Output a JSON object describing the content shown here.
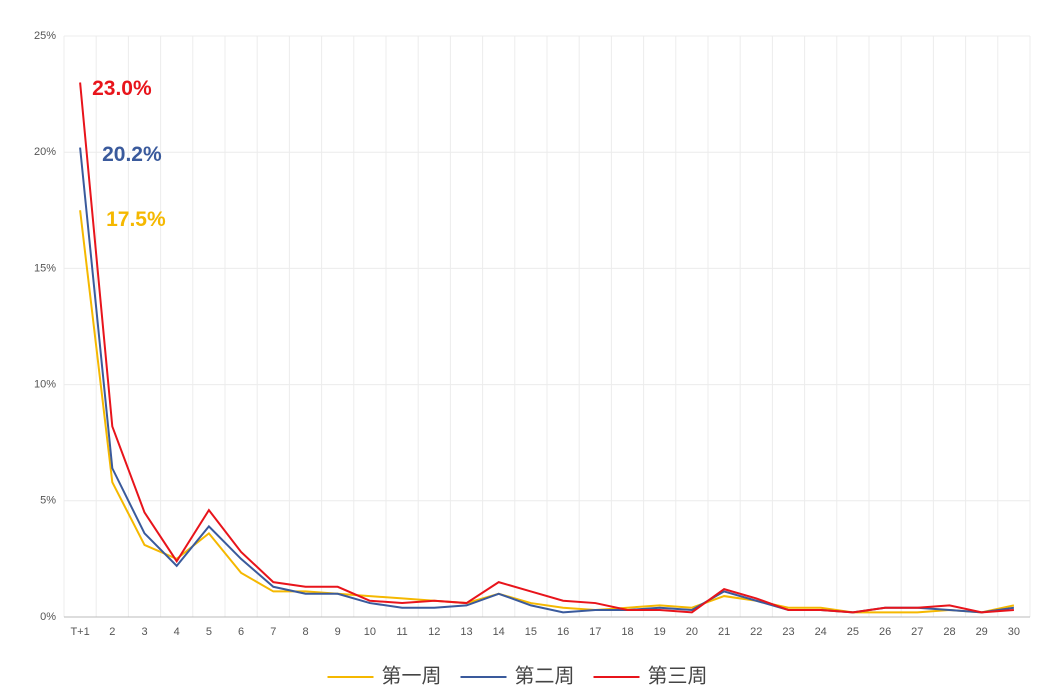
{
  "chart_data": {
    "type": "line",
    "categories": [
      "T+1",
      "2",
      "3",
      "4",
      "5",
      "6",
      "7",
      "8",
      "9",
      "10",
      "11",
      "12",
      "13",
      "14",
      "15",
      "16",
      "17",
      "18",
      "19",
      "20",
      "21",
      "22",
      "23",
      "24",
      "25",
      "26",
      "27",
      "28",
      "29",
      "30"
    ],
    "series": [
      {
        "name": "第一周",
        "color": "#f5b800",
        "values": [
          17.5,
          5.8,
          3.1,
          2.5,
          3.6,
          1.9,
          1.1,
          1.1,
          1.0,
          0.9,
          0.8,
          0.7,
          0.6,
          1.0,
          0.6,
          0.4,
          0.3,
          0.4,
          0.5,
          0.4,
          0.9,
          0.7,
          0.4,
          0.4,
          0.2,
          0.2,
          0.2,
          0.3,
          0.2,
          0.5
        ],
        "value_labels": [
          "17.5%",
          null,
          null,
          null,
          null,
          null,
          null,
          null,
          null,
          null,
          null,
          null,
          null,
          null,
          null,
          null,
          null,
          null,
          null,
          null,
          null,
          null,
          null,
          null,
          null,
          null,
          null,
          null,
          null,
          null
        ]
      },
      {
        "name": "第二周",
        "color": "#3a5a9c",
        "values": [
          20.2,
          6.4,
          3.6,
          2.2,
          3.9,
          2.5,
          1.3,
          1.0,
          1.0,
          0.6,
          0.4,
          0.4,
          0.5,
          1.0,
          0.5,
          0.2,
          0.3,
          0.3,
          0.4,
          0.3,
          1.1,
          0.7,
          0.3,
          0.3,
          0.2,
          0.4,
          0.4,
          0.3,
          0.2,
          0.4
        ],
        "value_labels": [
          "20.2%",
          null,
          null,
          null,
          null,
          null,
          null,
          null,
          null,
          null,
          null,
          null,
          null,
          null,
          null,
          null,
          null,
          null,
          null,
          null,
          null,
          null,
          null,
          null,
          null,
          null,
          null,
          null,
          null,
          null
        ]
      },
      {
        "name": "第三周",
        "color": "#e8141b",
        "values": [
          23.0,
          8.2,
          4.5,
          2.4,
          4.6,
          2.8,
          1.5,
          1.3,
          1.3,
          0.7,
          0.6,
          0.7,
          0.6,
          1.5,
          1.1,
          0.7,
          0.6,
          0.3,
          0.3,
          0.2,
          1.2,
          0.8,
          0.3,
          0.3,
          0.2,
          0.4,
          0.4,
          0.5,
          0.2,
          0.3
        ],
        "value_labels": [
          "23.0%",
          null,
          null,
          null,
          null,
          null,
          null,
          null,
          null,
          null,
          null,
          null,
          null,
          null,
          null,
          null,
          null,
          null,
          null,
          null,
          null,
          null,
          null,
          null,
          null,
          null,
          null,
          null,
          null,
          null
        ]
      }
    ],
    "ylim": [
      0,
      25
    ],
    "yticks": [
      {
        "value": 0,
        "label": "0%"
      },
      {
        "value": 5,
        "label": "5%"
      },
      {
        "value": 10,
        "label": "10%"
      },
      {
        "value": 15,
        "label": "15%"
      },
      {
        "value": 20,
        "label": "20%"
      },
      {
        "value": 25,
        "label": "25%"
      }
    ],
    "grid": true,
    "legend": "bottom"
  }
}
